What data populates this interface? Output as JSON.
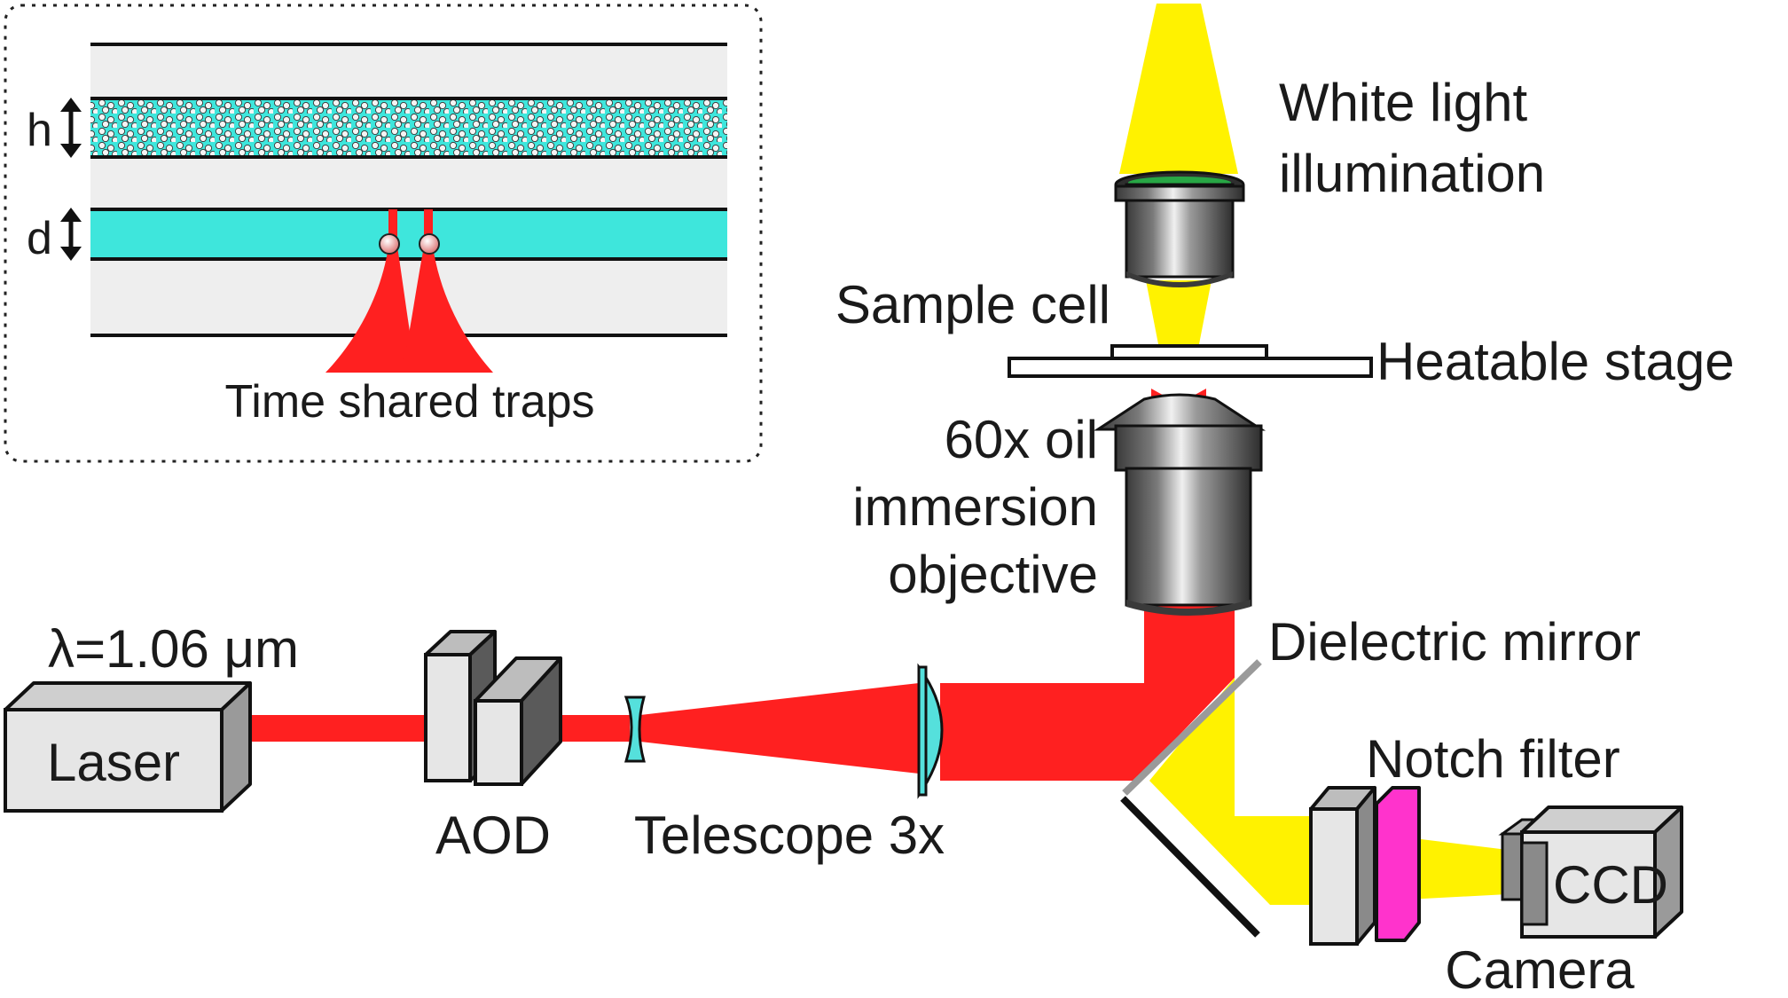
{
  "labels": {
    "white_light": [
      "White light",
      "illumination"
    ],
    "sample_cell": "Sample cell",
    "heatable_stage": "Heatable stage",
    "objective": [
      "60x oil",
      "immersion",
      "objective"
    ],
    "wavelength": "λ=1.06 μm",
    "laser": "Laser",
    "aod": "AOD",
    "telescope": "Telescope 3x",
    "dielectric_mirror": "Dielectric mirror",
    "notch_filter": "Notch filter",
    "ccd": "CCD",
    "camera": "Camera"
  },
  "inset": {
    "h_label": "h",
    "d_label": "d",
    "caption": "Time shared traps"
  },
  "colors": {
    "laser_beam": "#ff2020",
    "white_light": "#fff200",
    "channel": "#3ee6dc",
    "notch_filter": "#ff33cc",
    "lens": "#55e0dc",
    "box_fill": "#e6e6e6",
    "box_dark": "#8c8c8c",
    "objective_light": "#dcdcdc",
    "objective_dark": "#4a4a4a"
  },
  "icons": {
    "laser": "box-shape",
    "aod": "stacked-box-shape",
    "camera": "box-shape",
    "objective": "cylinder-shape",
    "mirror": "line-shape"
  }
}
